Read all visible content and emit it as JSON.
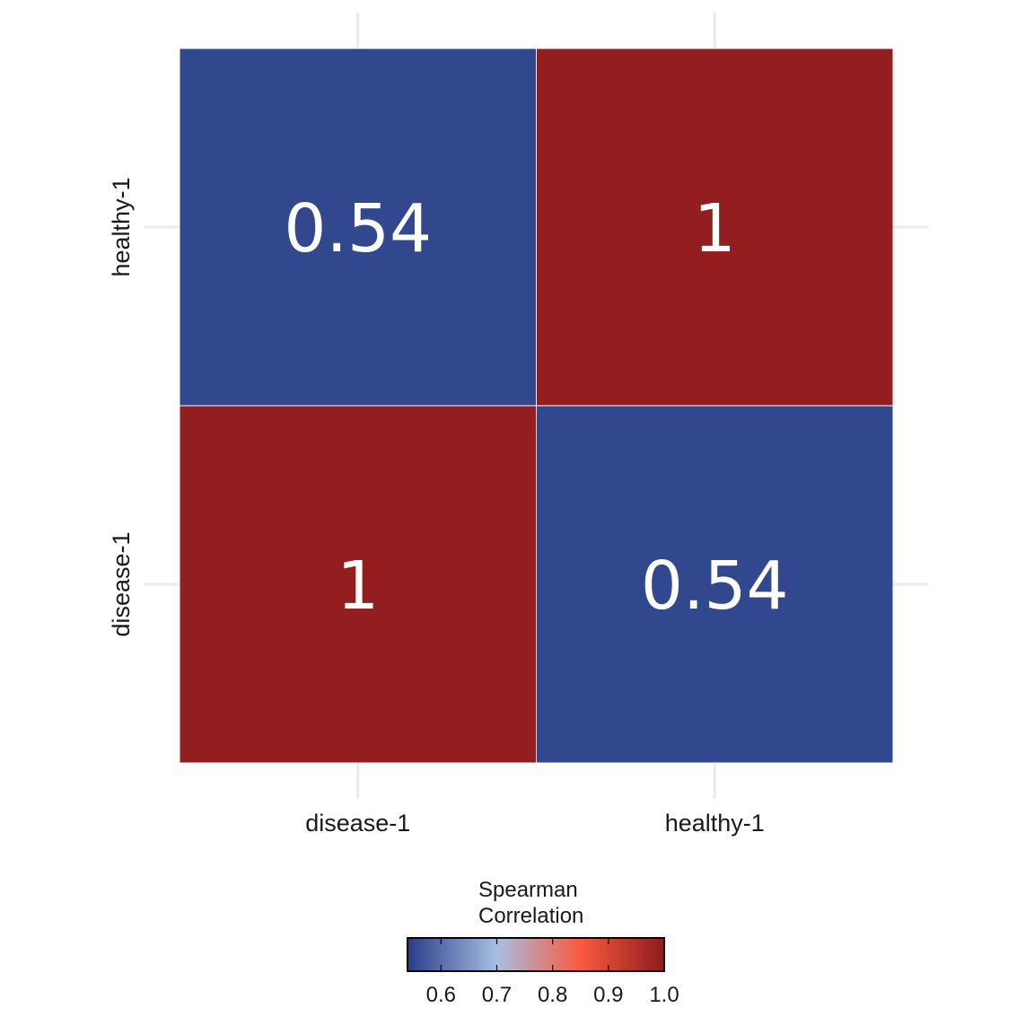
{
  "chart_data": {
    "type": "heatmap",
    "x_categories": [
      "disease-1",
      "healthy-1"
    ],
    "y_categories": [
      "disease-1",
      "healthy-1"
    ],
    "values": [
      [
        1,
        0.54
      ],
      [
        0.54,
        1
      ]
    ],
    "cell_labels": [
      [
        "1",
        "0.54"
      ],
      [
        "0.54",
        "1"
      ]
    ],
    "grid": true,
    "colorbar": {
      "title_lines": [
        "Spearman",
        "Correlation"
      ],
      "range": [
        0.54,
        1.0
      ],
      "ticks": [
        0.6,
        0.7,
        0.8,
        0.9,
        1.0
      ],
      "tick_labels": [
        "0.6",
        "0.7",
        "0.8",
        "0.9",
        "1.0"
      ],
      "placement": "bottom",
      "stops": [
        {
          "value": 0.54,
          "color": "#2b3b8a"
        },
        {
          "value": 0.7,
          "color": "#a7bfe0"
        },
        {
          "value": 0.85,
          "color": "#fa5a40"
        },
        {
          "value": 1.0,
          "color": "#8e1b1e"
        }
      ]
    },
    "colors": {
      "low": "#31488f",
      "high": "#931e1f",
      "cell_text": "#ffffff"
    }
  }
}
